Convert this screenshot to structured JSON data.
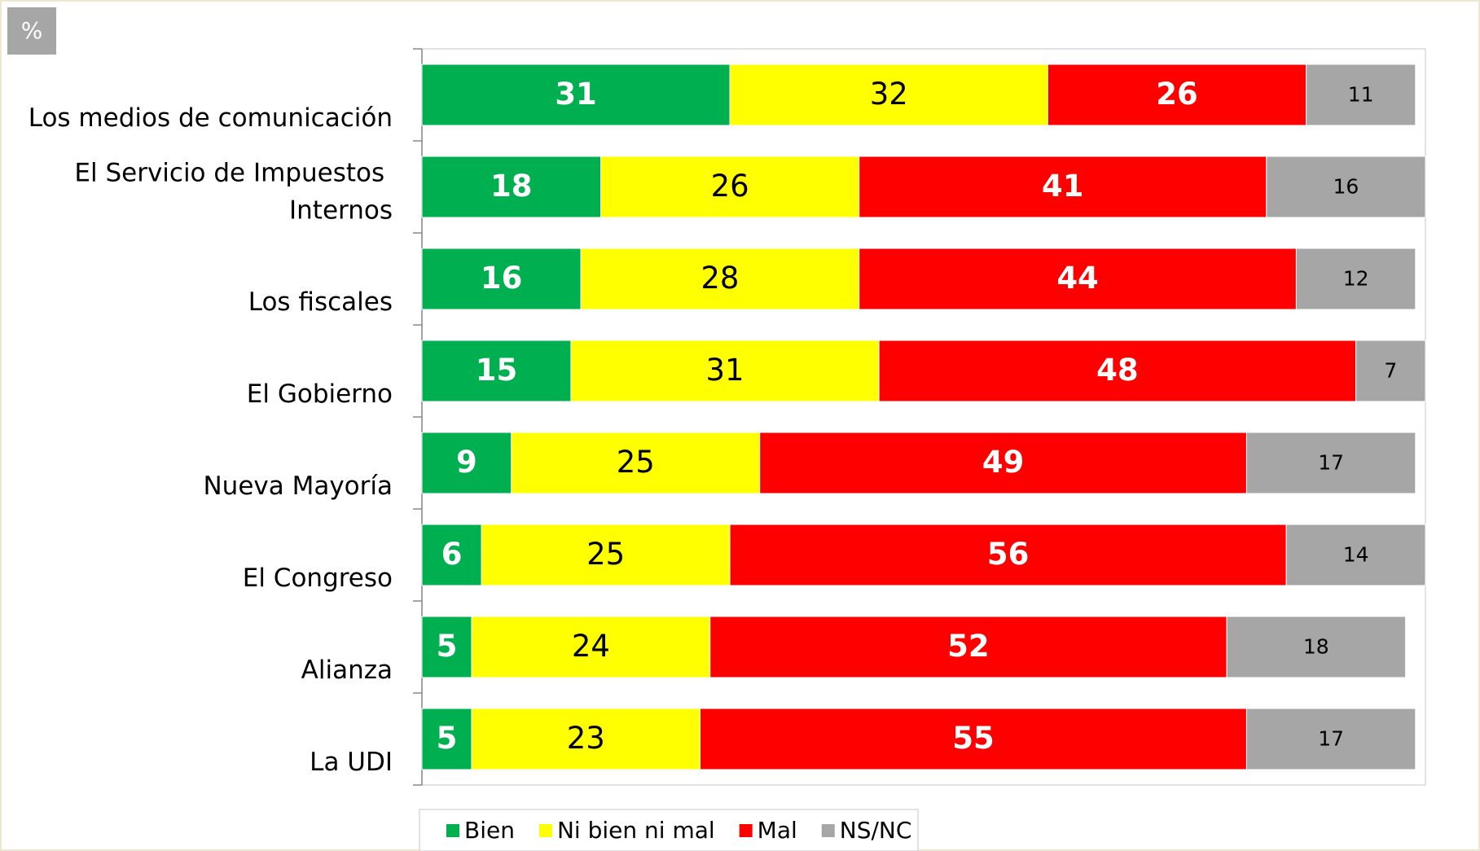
{
  "chart_data": {
    "type": "stacked-bar",
    "orientation": "horizontal",
    "unit_label": "%",
    "categories": [
      "Los medios de comunicación",
      "El Servicio de Impuestos Internos",
      "Los fiscales",
      "El Gobierno",
      "Nueva Mayoría",
      "El Congreso",
      "Alianza",
      "La UDI"
    ],
    "series": [
      {
        "name": "Bien",
        "color": "#00b050",
        "values": [
          31,
          18,
          16,
          15,
          9,
          6,
          5,
          5
        ]
      },
      {
        "name": "Ni bien ni mal",
        "color": "#ffff00",
        "values": [
          32,
          26,
          28,
          31,
          25,
          25,
          24,
          23
        ]
      },
      {
        "name": "Mal",
        "color": "#ff0000",
        "values": [
          26,
          41,
          44,
          48,
          49,
          56,
          52,
          55
        ]
      },
      {
        "name": "NS/NC",
        "color": "#a6a6a6",
        "values": [
          11,
          16,
          12,
          7,
          17,
          14,
          18,
          17
        ]
      }
    ],
    "xlim": [
      0,
      101
    ],
    "legend": "bottom"
  }
}
